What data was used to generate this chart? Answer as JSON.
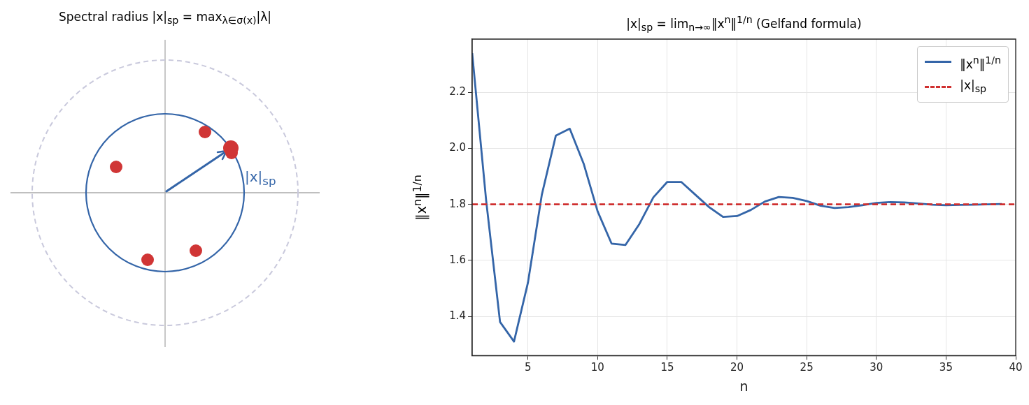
{
  "chart_data": [
    {
      "type": "other",
      "title": "Spectral radius |x|$_{sp}$ = max$_{λ∈σ(x)}$|λ|",
      "annotations": [
        "|x|$_{sp}$"
      ]
    },
    {
      "type": "line",
      "title": "|x|$_{sp}$ = lim$_{n→∞}$‖x$^{n}$‖$^{1/n}$ (Gelfand formula)",
      "xlabel": "n",
      "ylabel": "‖x$^{n}$‖$^{1/n}$",
      "x": [
        1,
        2,
        3,
        4,
        5,
        6,
        7,
        8,
        9,
        10,
        11,
        12,
        13,
        14,
        15,
        16,
        17,
        18,
        19,
        20,
        21,
        22,
        23,
        24,
        25,
        26,
        27,
        28,
        29,
        30,
        31,
        32,
        33,
        34,
        35,
        36,
        37,
        38,
        39
      ],
      "series": [
        {
          "name": "‖x$^{n}$‖$^{1/n}$",
          "color": "#3465a8",
          "values": [
            2.34,
            1.815,
            1.38,
            1.31,
            1.52,
            1.835,
            2.045,
            2.07,
            1.945,
            1.775,
            1.66,
            1.655,
            1.73,
            1.825,
            1.88,
            1.88,
            1.835,
            1.79,
            1.755,
            1.758,
            1.78,
            1.81,
            1.826,
            1.823,
            1.812,
            1.795,
            1.787,
            1.79,
            1.797,
            1.805,
            1.808,
            1.807,
            1.803,
            1.799,
            1.797,
            1.798,
            1.799,
            1.8,
            1.801
          ]
        }
      ],
      "ref_lines": [
        {
          "axis": "y",
          "value": 1.8,
          "label": "|x|$_{sp}$",
          "color": "#d03030",
          "line_style": "dashed"
        }
      ],
      "xlim": [
        1,
        40
      ],
      "xticks": [
        5,
        10,
        15,
        20,
        25,
        30,
        35,
        40
      ],
      "ylim": [
        1.26,
        2.39
      ],
      "yticks": [
        1.4,
        1.6,
        1.8,
        {
          "value": 2,
          "label": "2.0"
        },
        2.2
      ],
      "grid": true,
      "legend": "top right"
    }
  ]
}
